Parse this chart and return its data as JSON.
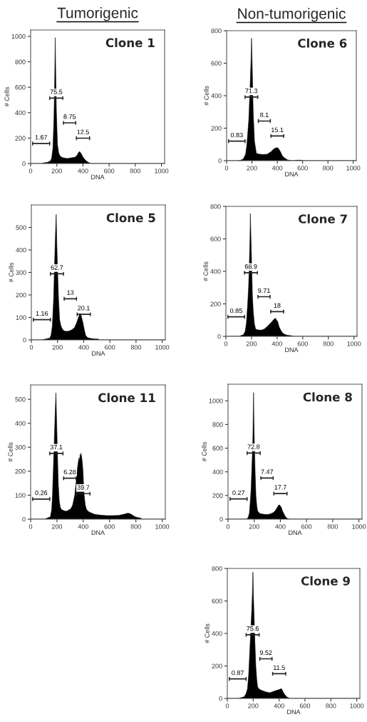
{
  "chart_data": [
    {
      "type": "area",
      "subtitle": "Tumorigenic",
      "title": "Clone 1",
      "xlabel": "DNA",
      "ylabel": "# Cells",
      "xlim": [
        0,
        1024
      ],
      "ylim": [
        0,
        1050
      ],
      "xticks": [
        0,
        200,
        400,
        600,
        800,
        1000
      ],
      "yticks": [
        0,
        200,
        400,
        600,
        800,
        1000
      ],
      "series": [
        {
          "color": "#000000",
          "x": [
            0,
            80,
            100,
            130,
            150,
            160,
            170,
            178,
            183,
            188,
            192,
            197,
            205,
            215,
            228,
            250,
            280,
            310,
            340,
            355,
            365,
            374,
            385,
            400,
            420,
            440,
            456,
            470,
            1024
          ],
          "values": [
            0,
            0,
            5,
            10,
            20,
            40,
            120,
            350,
            600,
            990,
            700,
            400,
            150,
            80,
            55,
            45,
            40,
            45,
            50,
            65,
            85,
            95,
            80,
            50,
            25,
            10,
            2,
            0,
            0
          ]
        }
      ],
      "annotations": [
        "1.67",
        "75.5",
        "8.75",
        "12.5"
      ]
    },
    {
      "type": "area",
      "subtitle": "Non-tumorigenic",
      "title": "Clone 6",
      "xlabel": "DNA",
      "ylabel": "# Cells",
      "xlim": [
        0,
        1024
      ],
      "ylim": [
        0,
        800
      ],
      "xticks": [
        0,
        200,
        400,
        600,
        800,
        1000
      ],
      "yticks": [
        0,
        200,
        400,
        600,
        800
      ],
      "series": [
        {
          "color": "#000000",
          "x": [
            0,
            90,
            110,
            131,
            150,
            160,
            175,
            185,
            192,
            197,
            203,
            210,
            220,
            235,
            260,
            290,
            320,
            350,
            370,
            385,
            400,
            410,
            425,
            440,
            460,
            480,
            500,
            520,
            555,
            590,
            600,
            1024
          ],
          "values": [
            0,
            0,
            3,
            10,
            40,
            100,
            250,
            450,
            600,
            754,
            550,
            300,
            120,
            45,
            40,
            38,
            40,
            55,
            70,
            78,
            80,
            75,
            55,
            30,
            15,
            5,
            2,
            0,
            3,
            3,
            0,
            0
          ]
        }
      ],
      "annotations": [
        "0.83",
        "71.3",
        "8.1",
        "15.1"
      ]
    },
    {
      "type": "area",
      "title": "Clone 5",
      "xlabel": "DNA",
      "ylabel": "# Cells",
      "xlim": [
        0,
        1024
      ],
      "ylim": [
        0,
        600
      ],
      "xticks": [
        0,
        200,
        400,
        600,
        800,
        1000
      ],
      "yticks": [
        0,
        100,
        200,
        300,
        400,
        500
      ],
      "series": [
        {
          "color": "#000000",
          "x": [
            0,
            80,
            100,
            140,
            150,
            160,
            170,
            178,
            185,
            190,
            195,
            201,
            208,
            216,
            225,
            235,
            250,
            270,
            290,
            310,
            330,
            345,
            360,
            372,
            380,
            393,
            405,
            415,
            430,
            450,
            480,
            511,
            520,
            1024
          ],
          "values": [
            0,
            0,
            3,
            8,
            20,
            60,
            180,
            350,
            480,
            558,
            420,
            300,
            180,
            90,
            65,
            50,
            40,
            38,
            40,
            45,
            55,
            75,
            100,
            118,
            110,
            80,
            45,
            20,
            10,
            7,
            5,
            4,
            0,
            0
          ]
        }
      ],
      "annotations": [
        "1.16",
        "62.7",
        "13",
        "20.1"
      ]
    },
    {
      "type": "area",
      "title": "Clone 7",
      "xlabel": "DNA",
      "ylabel": "# Cells",
      "xlim": [
        0,
        1024
      ],
      "ylim": [
        0,
        800
      ],
      "xticks": [
        0,
        200,
        400,
        600,
        800,
        1000
      ],
      "yticks": [
        0,
        200,
        400,
        600,
        800
      ],
      "series": [
        {
          "color": "#000000",
          "x": [
            0,
            100,
            110,
            136,
            150,
            160,
            170,
            177,
            183,
            188,
            191,
            196,
            201,
            207,
            214,
            222,
            232,
            250,
            275,
            300,
            322,
            340,
            359,
            375,
            387,
            396,
            405,
            415,
            424,
            438,
            452,
            475,
            498,
            520,
            526,
            1024
          ],
          "values": [
            0,
            0,
            3,
            10,
            30,
            80,
            200,
            300,
            450,
            600,
            756,
            600,
            450,
            250,
            150,
            80,
            45,
            40,
            38,
            45,
            60,
            75,
            90,
            105,
            112,
            100,
            90,
            60,
            45,
            25,
            15,
            8,
            5,
            3,
            0,
            0
          ]
        }
      ],
      "annotations": [
        "0.85",
        "68.9",
        "9.71",
        "18"
      ]
    },
    {
      "type": "area",
      "title": "Clone 11",
      "xlabel": "DNA",
      "ylabel": "# Cells",
      "xlim": [
        0,
        1024
      ],
      "ylim": [
        0,
        560
      ],
      "xticks": [
        0,
        200,
        400,
        600,
        800,
        1000
      ],
      "yticks": [
        0,
        100,
        200,
        300,
        400,
        500
      ],
      "series": [
        {
          "color": "#000000",
          "x": [
            0,
            110,
            118,
            150,
            160,
            166,
            175,
            181,
            187,
            192,
            197,
            203,
            210,
            217,
            225,
            235,
            255,
            271,
            290,
            307,
            320,
            335,
            345,
            353,
            360,
            367,
            372,
            376,
            380,
            383,
            386,
            389,
            394,
            398,
            402,
            407,
            415,
            425,
            440,
            452,
            470,
            488,
            530,
            579,
            620,
            669,
            705,
            741,
            759,
            780,
            795,
            815,
            832,
            850,
            1024
          ],
          "values": [
            0,
            0,
            3,
            10,
            40,
            100,
            250,
            350,
            450,
            527,
            420,
            null,
            150,
            80,
            50,
            40,
            35,
            33,
            38,
            45,
            60,
            100,
            150,
            200,
            230,
            255,
            245,
            270,
            260,
            275,
            265,
            255,
            230,
            200,
            150,
            100,
            60,
            40,
            32,
            28,
            24,
            20,
            17,
            15,
            15,
            16,
            20,
            25,
            22,
            15,
            10,
            7,
            5,
            0,
            0
          ]
        }
      ],
      "annotations": [
        "0.26",
        "37.1",
        "6.28",
        "39.7"
      ]
    },
    {
      "type": "area",
      "title": "Clone 8",
      "xlabel": "DNA",
      "ylabel": "# Cells",
      "xlim": [
        0,
        1024
      ],
      "ylim": [
        0,
        1140
      ],
      "xticks": [
        0,
        200,
        400,
        600,
        800,
        1000
      ],
      "yticks": [
        0,
        200,
        400,
        600,
        800,
        1000
      ],
      "series": [
        {
          "color": "#000000",
          "x": [
            0,
            140,
            148,
            155,
            163,
            170,
            176,
            181,
            186,
            190,
            195,
            199,
            202,
            207,
            213,
            220,
            226,
            240,
            253,
            280,
            307,
            325,
            344,
            360,
            371,
            380,
            389,
            398,
            407,
            416,
            425,
            434,
            443,
            452,
            461,
            470,
            1024
          ],
          "values": [
            0,
            0,
            5,
            20,
            50,
            150,
            250,
            400,
            550,
            700,
            1070,
            750,
            null,
            400,
            200,
            110,
            70,
            50,
            45,
            40,
            40,
            45,
            55,
            70,
            90,
            105,
            122,
            115,
            100,
            70,
            50,
            30,
            15,
            7,
            3,
            0,
            0
          ]
        }
      ],
      "annotations": [
        "0.27",
        "72.8",
        "7.47",
        "17.7"
      ]
    },
    {
      "type": "area",
      "title": "Clone 9",
      "xlabel": "DNA",
      "ylabel": "# Cells",
      "xlim": [
        0,
        1024
      ],
      "ylim": [
        0,
        800
      ],
      "xticks": [
        0,
        200,
        400,
        600,
        800,
        1000
      ],
      "yticks": [
        0,
        200,
        400,
        600,
        800
      ],
      "series": [
        {
          "color": "#000000",
          "x": [
            0,
            90,
            97,
            130,
            145,
            156,
            165,
            174,
            182,
            189,
            194,
            198,
            202,
            207,
            213,
            220,
            227,
            234,
            250,
            265,
            280,
            300,
            326,
            345,
            363,
            380,
            399,
            410,
            418,
            426,
            434,
            443,
            452,
            462,
            471,
            480,
            1024
          ],
          "values": [
            0,
            0,
            3,
            10,
            30,
            60,
            150,
            300,
            null,
            550,
            650,
            778,
            620,
            500,
            350,
            200,
            120,
            70,
            55,
            50,
            45,
            40,
            35,
            40,
            45,
            50,
            54,
            58,
            60,
            50,
            35,
            25,
            15,
            8,
            5,
            0,
            0
          ]
        }
      ],
      "annotations": [
        "0.87",
        "75.6",
        "9.52",
        "11.5"
      ]
    }
  ]
}
